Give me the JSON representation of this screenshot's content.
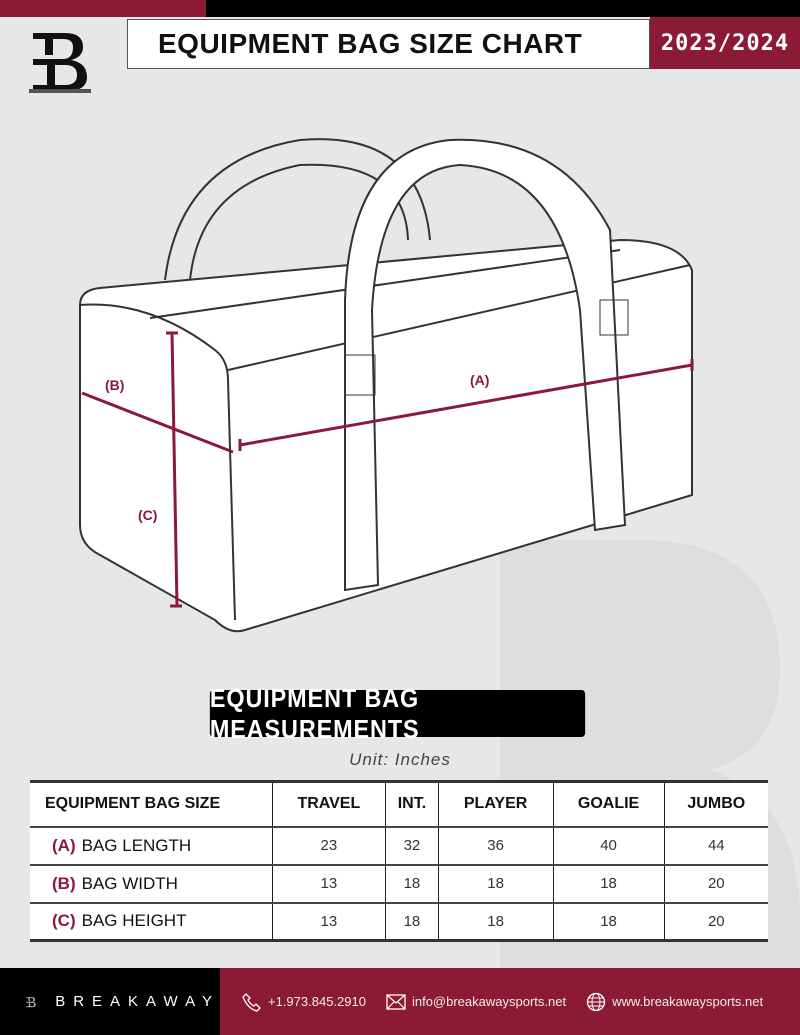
{
  "header": {
    "title": "EQUIPMENT BAG SIZE CHART",
    "season": "2023/2024",
    "logo_letter": "B"
  },
  "diagram": {
    "label_a": "(A)",
    "label_b": "(B)",
    "label_c": "(C)",
    "accent": "#8b1a36"
  },
  "section": {
    "title": "EQUIPMENT BAG MEASUREMENTS",
    "unit": "Unit: Inches"
  },
  "table": {
    "corner": "EQUIPMENT BAG SIZE",
    "columns": [
      "TRAVEL",
      "INT.",
      "PLAYER",
      "GOALIE",
      "JUMBO"
    ],
    "rows": [
      {
        "key": "(A)",
        "label": "BAG LENGTH",
        "values": [
          "23",
          "32",
          "36",
          "40",
          "44"
        ]
      },
      {
        "key": "(B)",
        "label": "BAG WIDTH",
        "values": [
          "13",
          "18",
          "18",
          "18",
          "20"
        ]
      },
      {
        "key": "(C)",
        "label": "BAG HEIGHT",
        "values": [
          "13",
          "18",
          "18",
          "18",
          "20"
        ]
      }
    ]
  },
  "footer": {
    "brand": "BREAKAWAY",
    "phone": "+1.973.845.2910",
    "email": "info@breakawaysports.net",
    "website": "www.breakawaysports.net"
  },
  "colors": {
    "brand_red": "#8b1a36",
    "black": "#000000"
  }
}
